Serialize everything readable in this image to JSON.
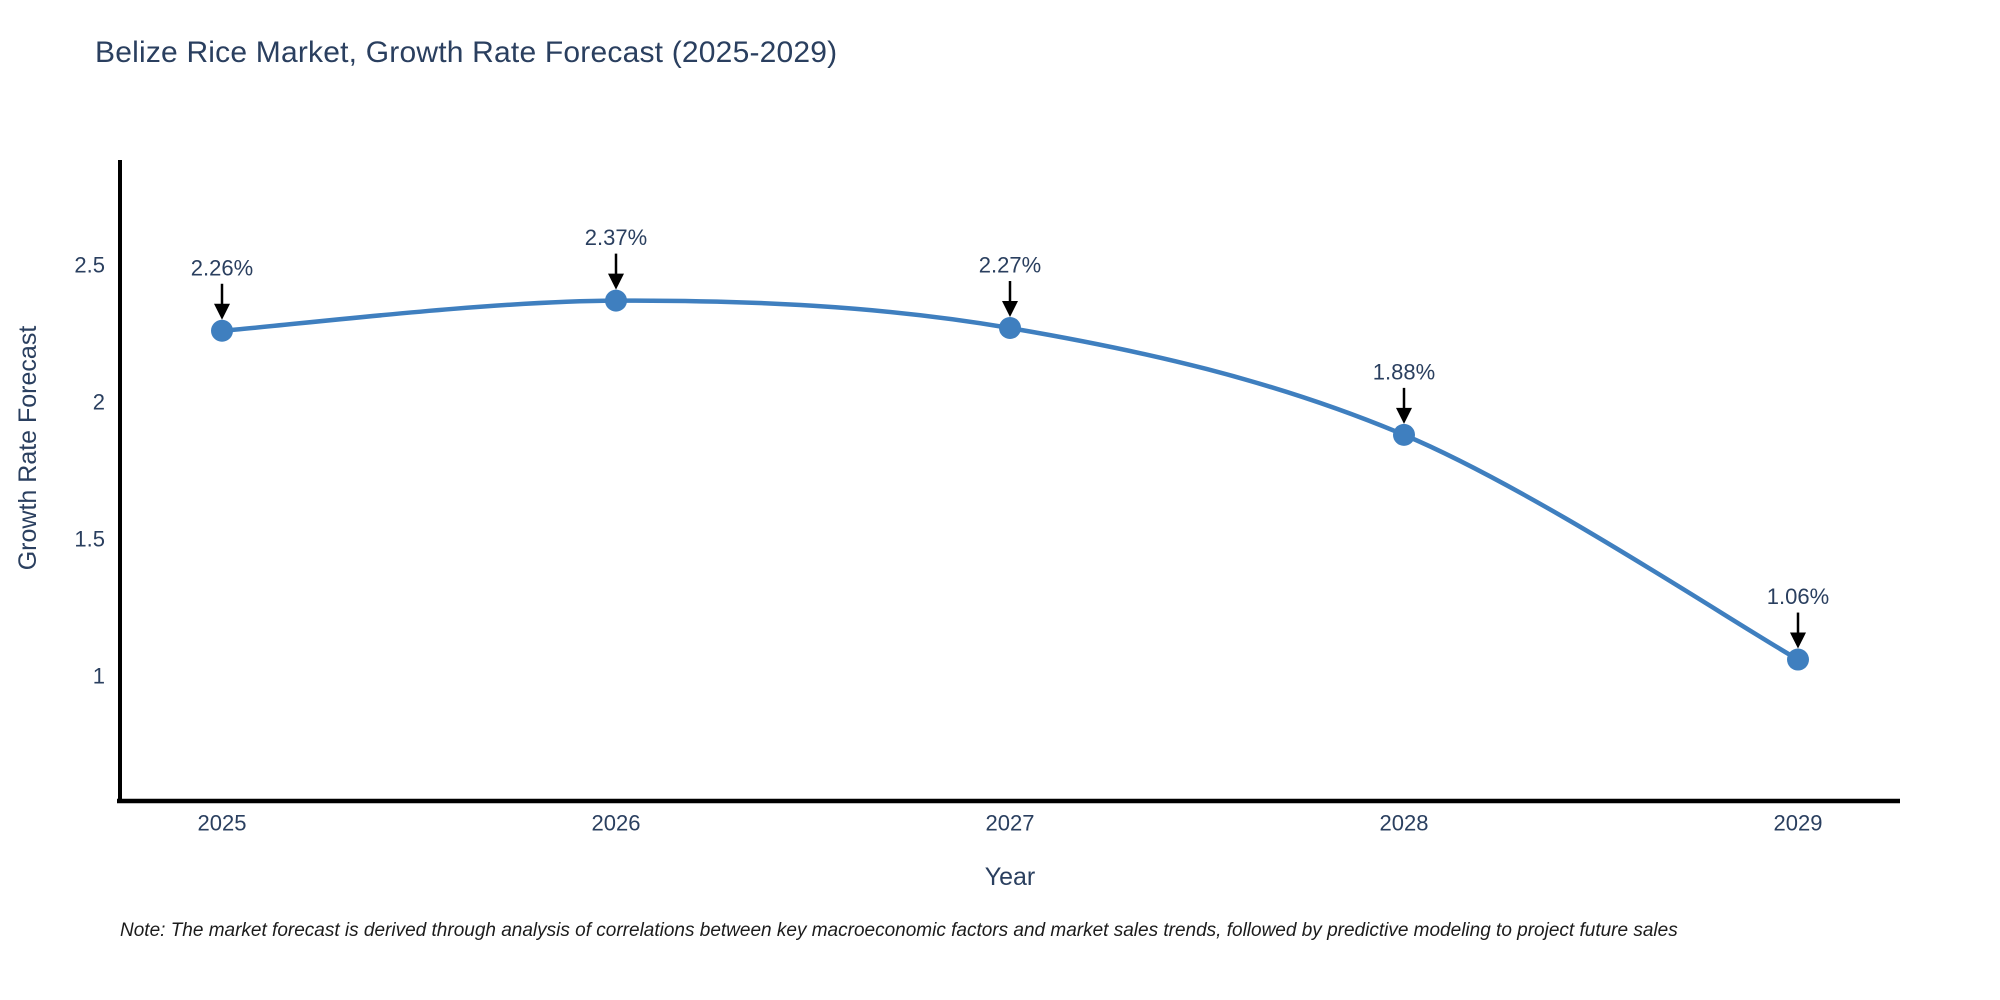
{
  "title": "Belize Rice Market, Growth Rate Forecast (2025-2029)",
  "note": "Note: The market forecast is derived through analysis of correlations between key macroeconomic factors and market sales trends, followed by predictive modeling to project future sales",
  "colors": {
    "line": "#3f7fbf",
    "marker": "#3f7fbf",
    "text": "#2a3f5f",
    "axis": "#000000",
    "annotation_arrow": "#000000",
    "background": "#ffffff"
  },
  "chart_data": {
    "type": "line",
    "title": "Belize Rice Market, Growth Rate Forecast (2025-2029)",
    "x": [
      "2025",
      "2026",
      "2027",
      "2028",
      "2029"
    ],
    "series": [
      {
        "name": "Growth Rate Forecast",
        "values": [
          2.26,
          2.37,
          2.27,
          1.88,
          1.06
        ]
      }
    ],
    "point_labels": [
      "2.26%",
      "2.37%",
      "2.27%",
      "1.88%",
      "1.06%"
    ],
    "xlabel": "Year",
    "ylabel": "Growth Rate Forecast",
    "ytick_labels": [
      "2.5",
      "2",
      "1.5",
      "1"
    ],
    "ytick_values": [
      2.5,
      2.0,
      1.5,
      1.0
    ],
    "ylim": [
      0.54,
      2.88
    ],
    "line_shape": "spline",
    "grid": false,
    "legend": "none",
    "marker_size": 11
  }
}
